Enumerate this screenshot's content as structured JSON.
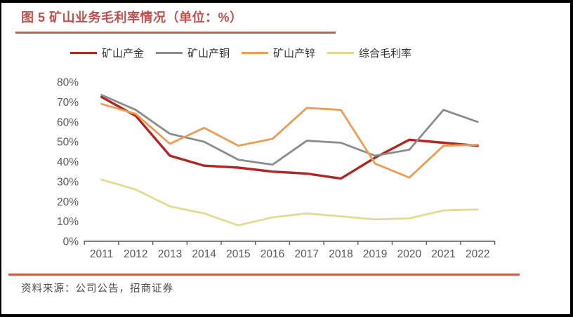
{
  "header": {
    "title": "图 5 矿山业务毛利率情况（单位：%）"
  },
  "footer": {
    "source": "资料来源：公司公告，招商证券"
  },
  "colors": {
    "title_accent": "#C0504D",
    "rule_accent": "#C0614A",
    "axis": "#595959",
    "tick_label": "#595959"
  },
  "chart_data": {
    "type": "line",
    "title": "图 5 矿山业务毛利率情况（单位：%）",
    "unit": "%",
    "categories": [
      "2011",
      "2012",
      "2013",
      "2014",
      "2015",
      "2016",
      "2017",
      "2018",
      "2019",
      "2020",
      "2021",
      "2022"
    ],
    "series": [
      {
        "name": "矿山产金",
        "color": "#B22622",
        "width": 3.4,
        "values": [
          72.5,
          63,
          43,
          38,
          37,
          35,
          34,
          31.5,
          42,
          51,
          49.5,
          48
        ]
      },
      {
        "name": "矿山产铜",
        "color": "#8C8C8C",
        "width": 2.8,
        "values": [
          73.5,
          66,
          54,
          50,
          41,
          38.5,
          50.5,
          49.5,
          43,
          46,
          66,
          60
        ]
      },
      {
        "name": "矿山产锌",
        "color": "#ED9C54",
        "width": 2.8,
        "values": [
          69,
          64,
          49,
          57,
          48,
          51.5,
          67,
          66,
          39,
          32,
          48,
          48.5
        ]
      },
      {
        "name": "综合毛利率",
        "color": "#E4DB90",
        "width": 2.8,
        "values": [
          31,
          26,
          17.5,
          14,
          8,
          12,
          14,
          12.5,
          11,
          11.5,
          15.5,
          16
        ]
      }
    ],
    "ylim": [
      0,
      80
    ],
    "ytick_step": 10,
    "ytick_suffix": "%",
    "xlabel": "",
    "ylabel": "",
    "grid": false,
    "legend_position": "top"
  }
}
